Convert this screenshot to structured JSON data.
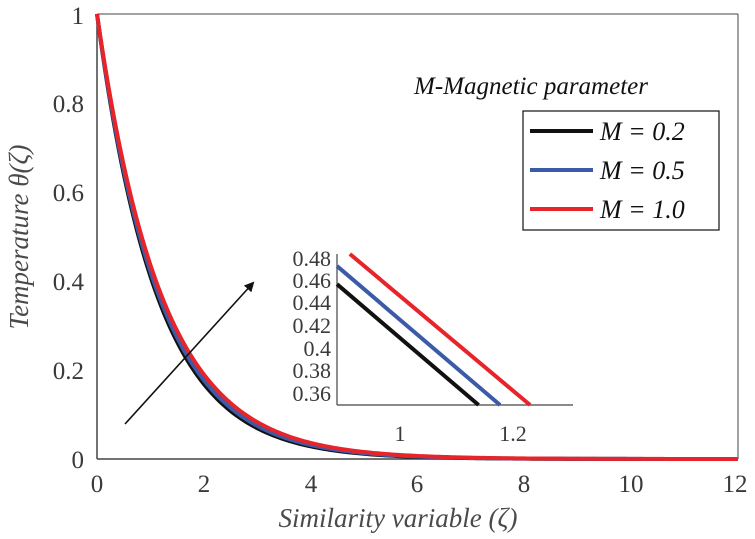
{
  "chart_data": {
    "type": "line",
    "xlabel": "Similarity variable (ζ)",
    "ylabel": "Temperature θ(ζ)",
    "xlim": [
      0,
      12
    ],
    "ylim": [
      0,
      1
    ],
    "xticks": [
      "0",
      "2",
      "4",
      "6",
      "8",
      "10",
      "12"
    ],
    "yticks": [
      "0",
      "0.2",
      "0.4",
      "0.6",
      "0.8",
      "1"
    ],
    "annotation": "M-Magnetic parameter",
    "legend_position": "top-right",
    "series": [
      {
        "name": "M = 0.2",
        "color": "#111111",
        "decay": 0.89
      },
      {
        "name": "M = 0.5",
        "color": "#3b5ba9",
        "decay": 0.865
      },
      {
        "name": "M = 1.0",
        "color": "#e8242b",
        "decay": 0.83
      }
    ],
    "inset": {
      "xlim": [
        0.8,
        1.35
      ],
      "ylim": [
        0.355,
        0.48
      ],
      "xticks": [
        "1",
        "1.2"
      ],
      "yticks": [
        "0.48",
        "0.46",
        "0.44",
        "0.42",
        "0.4",
        "0.38",
        "0.36"
      ],
      "series": [
        {
          "name": "M = 0.2",
          "x": [
            0.8,
            1.13
          ],
          "y": [
            0.455,
            0.355
          ]
        },
        {
          "name": "M = 0.5",
          "x": [
            0.8,
            1.18
          ],
          "y": [
            0.47,
            0.355
          ]
        },
        {
          "name": "M = 1.0",
          "x": [
            0.83,
            1.25
          ],
          "y": [
            0.48,
            0.355
          ]
        }
      ]
    }
  }
}
